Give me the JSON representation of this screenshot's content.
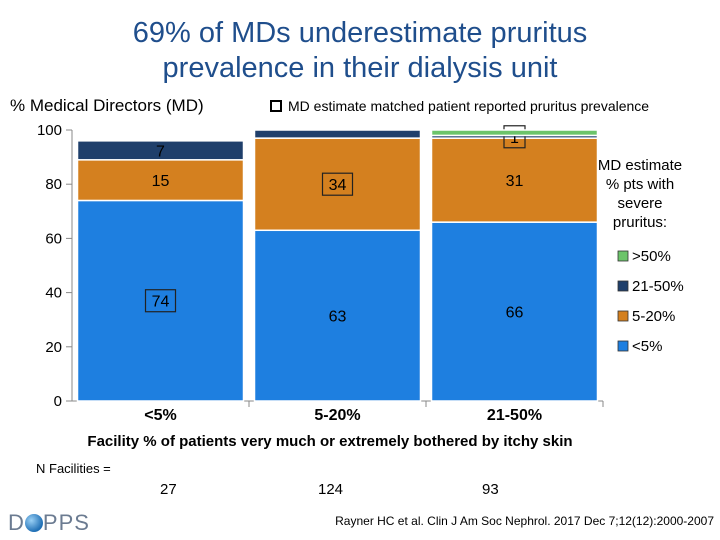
{
  "title_lines": [
    "69% of MDs underestimate pruritus",
    "prevalence in their dialysis unit"
  ],
  "colors": {
    "lt5": "#1e7fe0",
    "5to20": "#d4801f",
    "21to50": "#1f3f6b",
    "gt50": "#6cc46a",
    "title": "#1f4e8c"
  },
  "matched_legend": "MD estimate matched patient reported pruritus prevalence",
  "n_facilities": {
    "label": "N Facilities =",
    "values": [
      "27",
      "124",
      "93"
    ]
  },
  "logo": {
    "left": "D",
    "right": "PPS"
  },
  "citation": "Rayner HC et al. Clin J Am Soc Nephrol. 2017 Dec 7;12(12):2000-2007",
  "chart_data": {
    "type": "bar",
    "stacked": true,
    "ylabel": "% Medical Directors (MD)",
    "xlabel": "Facility % of patients very much or extremely bothered by itchy skin",
    "ylim": [
      0,
      100
    ],
    "yticks": [
      "0",
      "20",
      "40",
      "60",
      "80",
      "100"
    ],
    "categories": [
      "<5%",
      "5-20%",
      "21-50%"
    ],
    "legend_title": "MD estimate % pts with severe pruritus:",
    "series": [
      {
        "name": "<5%",
        "key": "lt5",
        "values": [
          74,
          63,
          66
        ],
        "labels": [
          "74",
          "63",
          "66"
        ],
        "boxed": [
          true,
          false,
          false
        ]
      },
      {
        "name": "5-20%",
        "key": "5to20",
        "values": [
          15,
          34,
          31
        ],
        "labels": [
          "15",
          "34",
          "31"
        ],
        "boxed": [
          false,
          true,
          false
        ]
      },
      {
        "name": "21-50%",
        "key": "21to50",
        "values": [
          7,
          3,
          1
        ],
        "labels": [
          "7",
          "",
          "1"
        ],
        "boxed": [
          false,
          false,
          true
        ]
      },
      {
        "name": ">50%",
        "key": "gt50",
        "values": [
          0,
          0,
          2
        ],
        "labels": [
          "",
          "",
          ""
        ],
        "boxed": [
          false,
          false,
          false
        ]
      }
    ],
    "legend_order": [
      ">50%",
      "21-50%",
      "5-20%",
      "<5%"
    ]
  }
}
